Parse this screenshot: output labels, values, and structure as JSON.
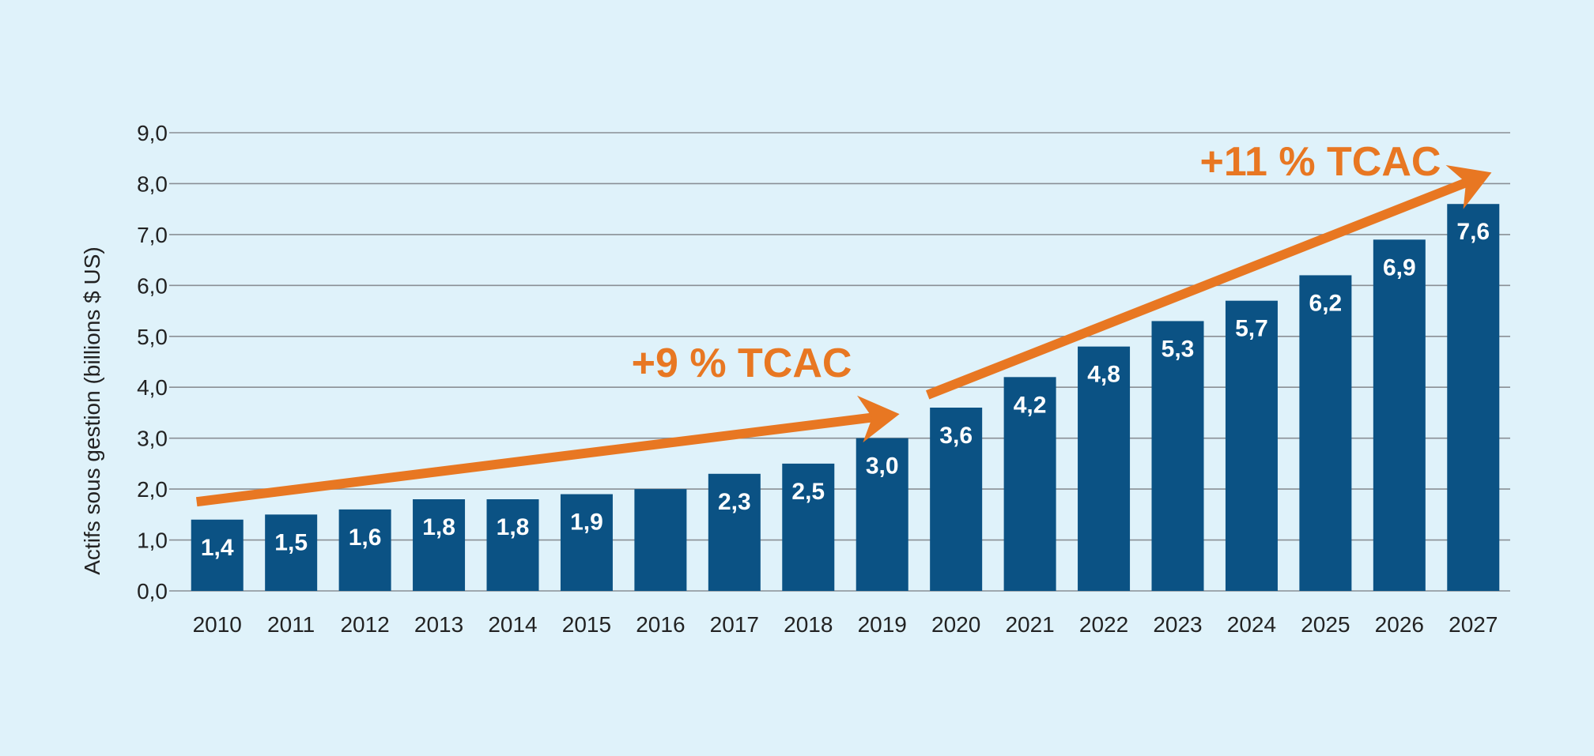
{
  "chart_data": {
    "type": "bar",
    "ylabel": "Actifs sous gestion (billions $ US)",
    "xlabel": "",
    "title": "",
    "ylim": [
      0,
      9
    ],
    "y_ticks": [
      "0,0",
      "1,0",
      "2,0",
      "3,0",
      "4,0",
      "5,0",
      "6,0",
      "7,0",
      "8,0",
      "9,0"
    ],
    "grid": true,
    "categories": [
      "2010",
      "2011",
      "2012",
      "2013",
      "2014",
      "2015",
      "2016",
      "2017",
      "2018",
      "2019",
      "2020",
      "2021",
      "2022",
      "2023",
      "2024",
      "2025",
      "2026",
      "2027"
    ],
    "values": [
      1.4,
      1.5,
      1.6,
      1.8,
      1.8,
      1.9,
      2.0,
      2.3,
      2.5,
      3.0,
      3.6,
      4.2,
      4.8,
      5.3,
      5.7,
      6.2,
      6.9,
      7.6
    ],
    "data_labels": [
      "1,4",
      "1,5",
      "1,6",
      "1,8",
      "1,8",
      "1,9",
      "",
      "2,3",
      "2,5",
      "3,0",
      "3,6",
      "4,2",
      "4,8",
      "5,3",
      "5,7",
      "6,2",
      "6,9",
      "7,6"
    ],
    "annotations": [
      {
        "text": "+9 % TCAC",
        "from_year": "2010",
        "from_value": 1.75,
        "to_year": "2019",
        "to_value": 3.45
      },
      {
        "text": "+11 % TCAC",
        "from_year": "2020",
        "from_value": 3.85,
        "to_year": "2027",
        "to_value": 8.15
      }
    ],
    "colors": {
      "bar": "#0b5284",
      "arrow": "#e87722",
      "grid": "#8a8f95",
      "background": "#dff2fa",
      "text": "#222222"
    }
  }
}
